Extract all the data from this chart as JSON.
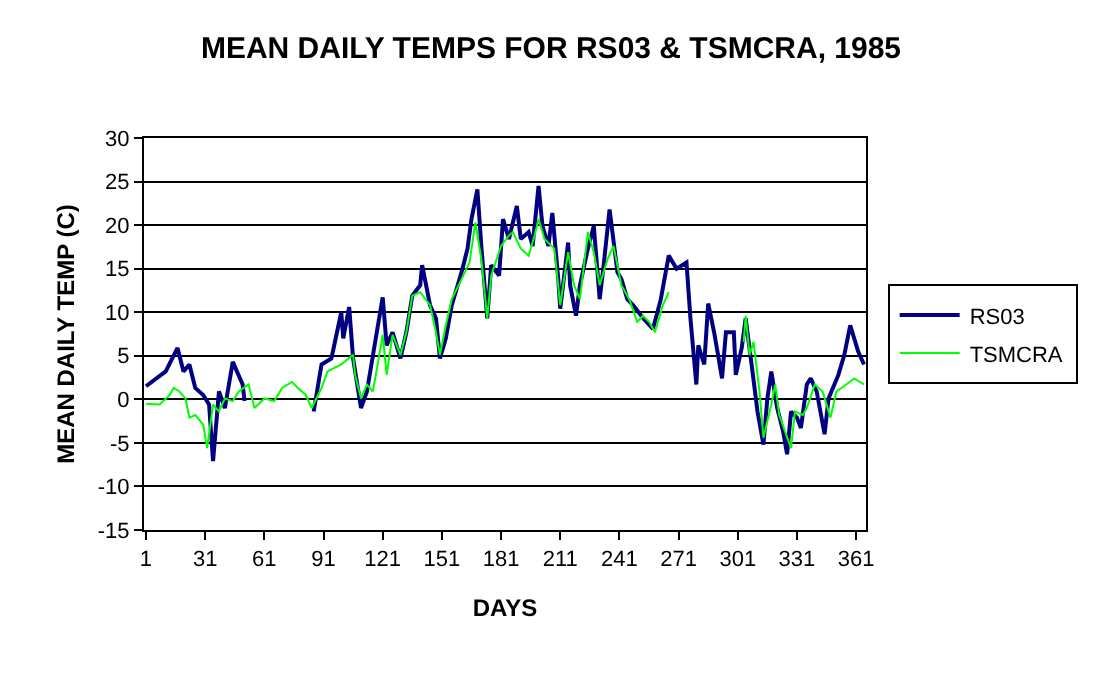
{
  "chart_data": {
    "type": "line",
    "title": "MEAN DAILY TEMPS FOR RS03 & TSMCRA, 1985",
    "xlabel": "DAYS",
    "ylabel": "MEAN DAILY TEMP (C)",
    "xlim": [
      0,
      366
    ],
    "xticks": [
      1,
      31,
      61,
      91,
      121,
      151,
      181,
      211,
      241,
      271,
      301,
      331,
      361
    ],
    "ylim": [
      -15,
      30
    ],
    "yticks": [
      -15,
      -10,
      -5,
      0,
      5,
      10,
      15,
      20,
      25,
      30
    ],
    "grid": "y",
    "legend": "right",
    "marker": "none",
    "line_style": "solid",
    "series": [
      {
        "name": "RS03",
        "color": "#000080",
        "x": [
          1,
          11,
          17,
          20,
          23,
          26,
          30,
          33,
          35,
          38,
          41,
          45,
          50,
          51,
          null,
          86,
          90,
          95,
          100,
          101,
          104,
          106,
          110,
          113,
          118,
          121,
          123,
          126,
          130,
          133,
          136,
          140,
          141,
          145,
          148,
          150,
          153,
          156,
          161,
          164,
          166,
          169,
          171,
          174,
          176,
          180,
          182,
          185,
          189,
          191,
          195,
          197,
          200,
          202,
          205,
          207,
          210,
          211,
          215,
          216,
          219,
          221,
          225,
          228,
          231,
          233,
          236,
          240,
          242,
          245,
          248,
          253,
          258,
          262,
          266,
          270,
          275,
          277,
          280,
          281,
          284,
          286,
          289,
          291,
          293,
          295,
          299,
          300,
          303,
          305,
          308,
          311,
          314,
          316,
          318,
          321,
          324,
          326,
          328,
          331,
          333,
          336,
          338,
          341,
          345,
          347,
          352,
          355,
          358,
          362,
          365
        ],
        "values": [
          1.5,
          3.2,
          5.9,
          3.2,
          4,
          1.3,
          0.5,
          -0.6,
          -7.1,
          0.9,
          -1,
          4.3,
          1.7,
          -0.2,
          null,
          -1.4,
          4,
          4.7,
          10,
          7,
          10.6,
          4.7,
          -1,
          0.9,
          7.7,
          11.7,
          6.2,
          7.7,
          4.7,
          7.7,
          11.9,
          13.1,
          15.4,
          10.8,
          9.3,
          4.7,
          7,
          10.8,
          14.6,
          17.3,
          20.7,
          24.1,
          17.6,
          9.3,
          15.4,
          14.2,
          20.7,
          18.4,
          22.2,
          18.4,
          19.2,
          17.6,
          24.5,
          19.9,
          17.6,
          21.4,
          13.8,
          10.4,
          18,
          13.1,
          9.6,
          13.1,
          17.3,
          19.9,
          11.5,
          15.4,
          21.8,
          14.6,
          13.8,
          11.5,
          10.8,
          9.3,
          8.1,
          11.5,
          16.5,
          15,
          15.7,
          9.3,
          1.7,
          6.2,
          4,
          11,
          7.7,
          5.1,
          2.4,
          7.7,
          7.7,
          2.8,
          5.9,
          9.3,
          4,
          -1.4,
          -5.2,
          0.1,
          3.2,
          -1,
          -3.7,
          -6.3,
          -1.4,
          -2.1,
          -3.3,
          1.7,
          2.4,
          0.9,
          -4,
          0.1,
          2.8,
          5.1,
          8.5,
          5.5,
          4
        ]
      },
      {
        "name": "TSMCRA",
        "color": "#00ff00",
        "x": [
          1,
          8,
          13,
          15,
          18,
          21,
          23,
          26,
          30,
          32,
          35,
          38,
          41,
          45,
          48,
          53,
          56,
          61,
          66,
          70,
          75,
          78,
          82,
          85,
          90,
          93,
          100,
          106,
          107,
          110,
          113,
          116,
          119,
          121,
          123,
          126,
          130,
          133,
          136,
          140,
          145,
          148,
          150,
          153,
          156,
          161,
          165,
          168,
          171,
          174,
          176,
          181,
          185,
          187,
          191,
          195,
          198,
          200,
          203,
          208,
          211,
          215,
          218,
          221,
          225,
          228,
          231,
          235,
          238,
          242,
          246,
          250,
          253,
          256,
          259,
          263,
          266,
          null,
          304,
          305,
          307,
          309,
          312,
          314,
          318,
          320,
          322,
          325,
          328,
          330,
          334,
          336,
          340,
          344,
          348,
          351,
          356,
          360,
          365
        ],
        "values": [
          -0.5,
          -0.6,
          0.5,
          1.3,
          0.9,
          0.1,
          -2.1,
          -1.8,
          -2.9,
          -5.6,
          -0.6,
          -1.4,
          0.1,
          -0.2,
          0.9,
          1.7,
          -1,
          0.1,
          -0.2,
          1.3,
          2,
          1.3,
          0.5,
          -1,
          1.3,
          3.2,
          4,
          5.1,
          2.8,
          0.1,
          1.7,
          0.9,
          4.7,
          7.4,
          2.8,
          7.4,
          5.1,
          7.7,
          11.9,
          12.3,
          10.8,
          7.7,
          5.1,
          8.5,
          11.5,
          13.8,
          15.7,
          20.3,
          16.1,
          9.3,
          14.2,
          17.6,
          18.8,
          19.2,
          17.3,
          16.5,
          18.8,
          20.7,
          18.4,
          17.3,
          10.8,
          16.9,
          13.1,
          11.5,
          19.2,
          16.9,
          13.1,
          16.1,
          17.6,
          13.1,
          11.5,
          8.9,
          9.6,
          8.9,
          7.7,
          10.8,
          12.3,
          null,
          6.6,
          9.6,
          5.1,
          6.6,
          0.9,
          -4.4,
          -0.6,
          1.7,
          -1.8,
          -3.7,
          -5.6,
          -1.4,
          -1.8,
          -1,
          1.7,
          0.9,
          -2.1,
          0.9,
          1.7,
          2.4,
          1.7
        ]
      }
    ]
  }
}
